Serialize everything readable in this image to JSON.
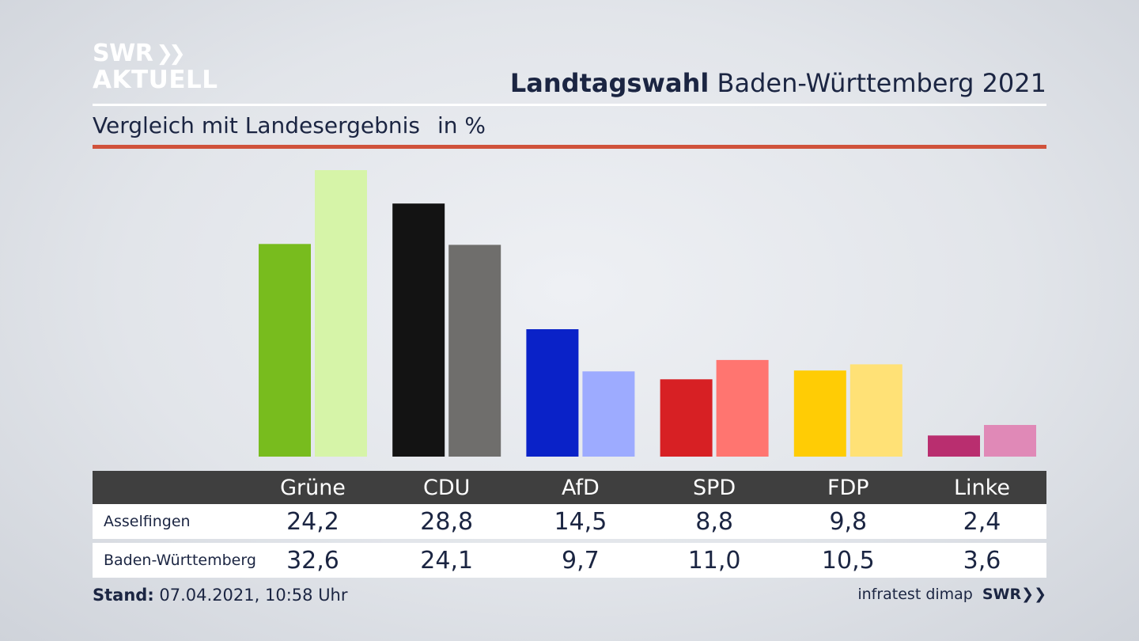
{
  "logo": {
    "line1": "SWR",
    "line2": "AKTUELL"
  },
  "header": {
    "title_bold": "Landtagswahl",
    "title_rest": "Baden-Württemberg 2021",
    "subtitle": "Vergleich mit Landesergebnis",
    "unit": "in %"
  },
  "table": {
    "row_labels": [
      "Asselfingen",
      "Baden-Württemberg"
    ]
  },
  "chart_data": {
    "type": "bar",
    "categories": [
      "Grüne",
      "CDU",
      "AfD",
      "SPD",
      "FDP",
      "Linke"
    ],
    "series": [
      {
        "name": "Asselfingen",
        "values": [
          24.2,
          28.8,
          14.5,
          8.8,
          9.8,
          2.4
        ]
      },
      {
        "name": "Baden-Württemberg",
        "values": [
          32.6,
          24.1,
          9.7,
          11.0,
          10.5,
          3.6
        ]
      }
    ],
    "value_labels": [
      [
        "24,2",
        "28,8",
        "14,5",
        "8,8",
        "9,8",
        "2,4"
      ],
      [
        "32,6",
        "24,1",
        "9,7",
        "11,0",
        "10,5",
        "3,6"
      ]
    ],
    "colors": [
      [
        "#78bc1e",
        "#d6f4a8"
      ],
      [
        "#131313",
        "#6f6e6c"
      ],
      [
        "#0a22c8",
        "#9dabff"
      ],
      [
        "#d72024",
        "#ff7570"
      ],
      [
        "#ffcc05",
        "#ffe176"
      ],
      [
        "#b92e6f",
        "#e089b7"
      ]
    ],
    "ylim": [
      0,
      32.6
    ],
    "grid": false
  },
  "footer": {
    "stand_label": "Stand:",
    "stand_value": "07.04.2021, 10:58 Uhr",
    "source": "infratest dimap",
    "brand": "SWR"
  }
}
